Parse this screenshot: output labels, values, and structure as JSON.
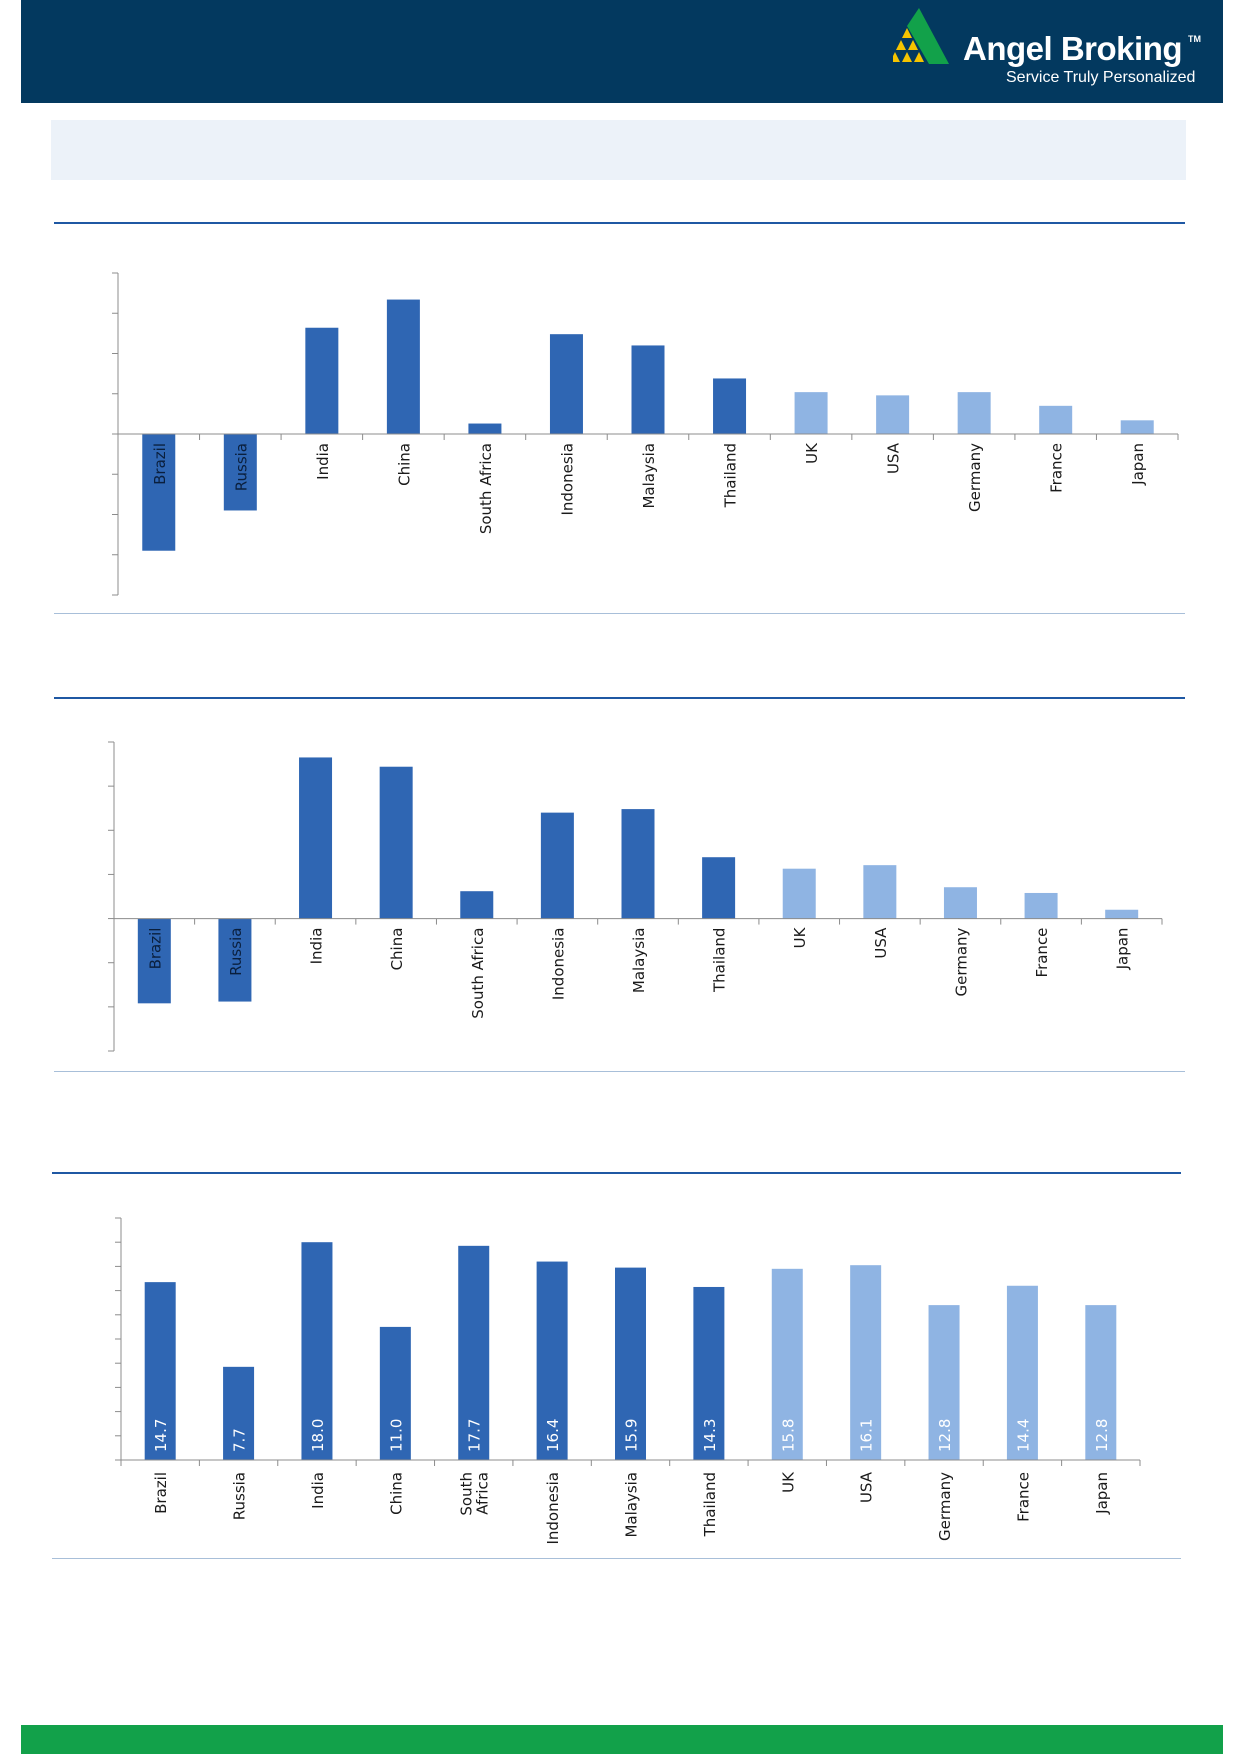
{
  "brand": {
    "name": "Angel Broking",
    "trademark": "TM",
    "tagline": "Service Truly Personalized"
  },
  "colors": {
    "header_bg": "#03395f",
    "banner_bg": "#ecf2f9",
    "rule_dark": "#1f58a3",
    "rule_light": "#a8bfd9",
    "bar_emerging": "#2f66b3",
    "bar_developed": "#8fb4e3",
    "footer": "#12a14a",
    "logo_green": "#12a14a",
    "logo_gold": "#f5c400"
  },
  "chart_data": [
    {
      "type": "bar",
      "categories": [
        "Brazil",
        "Russia",
        "India",
        "China",
        "South Africa",
        "Indonesia",
        "Malaysia",
        "Thailand",
        "UK",
        "USA",
        "Germany",
        "France",
        "Japan"
      ],
      "values": [
        -14.5,
        -9.5,
        13.2,
        16.7,
        1.3,
        12.4,
        11.0,
        6.9,
        5.2,
        4.8,
        5.2,
        3.5,
        1.7
      ],
      "group": [
        "emerging",
        "emerging",
        "emerging",
        "emerging",
        "emerging",
        "emerging",
        "emerging",
        "emerging",
        "developed",
        "developed",
        "developed",
        "developed",
        "developed"
      ],
      "ylim": [
        -20,
        20
      ],
      "yticks": [
        -20,
        -15,
        -10,
        -5,
        0,
        5,
        10,
        15,
        20
      ],
      "category_labels": "inside-rotated",
      "grid": false,
      "legend": "none",
      "title": "",
      "xlabel": "",
      "ylabel": ""
    },
    {
      "type": "bar",
      "categories": [
        "Brazil",
        "Russia",
        "India",
        "China",
        "South Africa",
        "Indonesia",
        "Malaysia",
        "Thailand",
        "UK",
        "USA",
        "Germany",
        "France",
        "Japan"
      ],
      "values": [
        -19.2,
        -18.8,
        36.5,
        34.4,
        6.2,
        24.0,
        24.8,
        13.9,
        11.3,
        12.1,
        7.1,
        5.8,
        2.0
      ],
      "group": [
        "emerging",
        "emerging",
        "emerging",
        "emerging",
        "emerging",
        "emerging",
        "emerging",
        "emerging",
        "developed",
        "developed",
        "developed",
        "developed",
        "developed"
      ],
      "ylim": [
        -30,
        40
      ],
      "yticks": [
        -30,
        -20,
        -10,
        0,
        10,
        20,
        30,
        40
      ],
      "category_labels": "inside-rotated",
      "grid": false,
      "legend": "none",
      "title": "",
      "xlabel": "",
      "ylabel": ""
    },
    {
      "type": "bar",
      "categories": [
        "Brazil",
        "Russia",
        "India",
        "China",
        "South Africa",
        "Indonesia",
        "Malaysia",
        "Thailand",
        "UK",
        "USA",
        "Germany",
        "France",
        "Japan"
      ],
      "category_display": [
        "Brazil",
        "Russia",
        "India",
        "China",
        "South\nAfrica",
        "Indonesia",
        "Malaysia",
        "Thailand",
        "UK",
        "USA",
        "Germany",
        "France",
        "Japan"
      ],
      "values": [
        14.7,
        7.7,
        18.0,
        11.0,
        17.7,
        16.4,
        15.9,
        14.3,
        15.8,
        16.1,
        12.8,
        14.4,
        12.8
      ],
      "data_labels": [
        "14.7",
        "7.7",
        "18.0",
        "11.0",
        "17.7",
        "16.4",
        "15.9",
        "14.3",
        "15.8",
        "16.1",
        "12.8",
        "14.4",
        "12.8"
      ],
      "group": [
        "emerging",
        "emerging",
        "emerging",
        "emerging",
        "emerging",
        "emerging",
        "emerging",
        "emerging",
        "developed",
        "developed",
        "developed",
        "developed",
        "developed"
      ],
      "ylim": [
        0,
        20
      ],
      "yticks": [
        0,
        2,
        4,
        6,
        8,
        10,
        12,
        14,
        16,
        18,
        20
      ],
      "category_labels": "below-rotated",
      "grid": false,
      "legend": "none",
      "title": "",
      "xlabel": "",
      "ylabel": ""
    }
  ]
}
